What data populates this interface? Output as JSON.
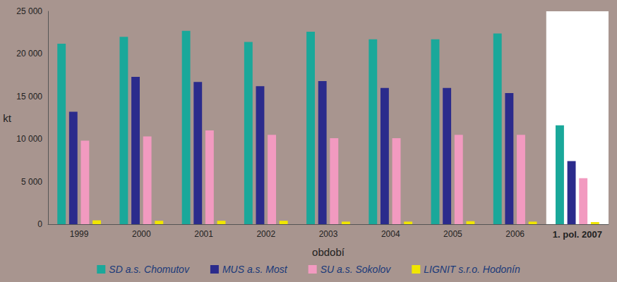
{
  "chart_data": {
    "type": "bar",
    "x_label": "období",
    "y_label": "kt",
    "categories": [
      "1999",
      "2000",
      "2001",
      "2002",
      "2003",
      "2004",
      "2005",
      "2006",
      "1. pol. 2007"
    ],
    "series": [
      {
        "name": "SD a.s. Chomutov",
        "color": "#1aa89a",
        "values": [
          21200,
          22000,
          22700,
          21400,
          22600,
          21700,
          21700,
          22400,
          11600
        ]
      },
      {
        "name": "MUS a.s. Most",
        "color": "#2b2b8c",
        "values": [
          13200,
          17300,
          16700,
          16200,
          16800,
          16000,
          16000,
          15400,
          7400
        ]
      },
      {
        "name": "SU a.s. Sokolov",
        "color": "#f29ac0",
        "values": [
          9800,
          10300,
          11000,
          10500,
          10100,
          10100,
          10500,
          10500,
          5400
        ]
      },
      {
        "name": "LIGNIT s.r.o. Hodonín",
        "color": "#f0e600",
        "values": [
          450,
          400,
          400,
          400,
          300,
          300,
          350,
          300,
          250
        ]
      }
    ],
    "ylim": [
      0,
      25000
    ],
    "yticks": [
      0,
      {
        "value": 5000,
        "label": "5 000"
      },
      {
        "value": 10000,
        "label": "10 000"
      },
      {
        "value": 15000,
        "label": "15 000"
      },
      {
        "value": 20000,
        "label": "20 000"
      },
      {
        "value": 25000,
        "label": "25 000"
      }
    ],
    "grid": false,
    "legend": "bottom"
  }
}
